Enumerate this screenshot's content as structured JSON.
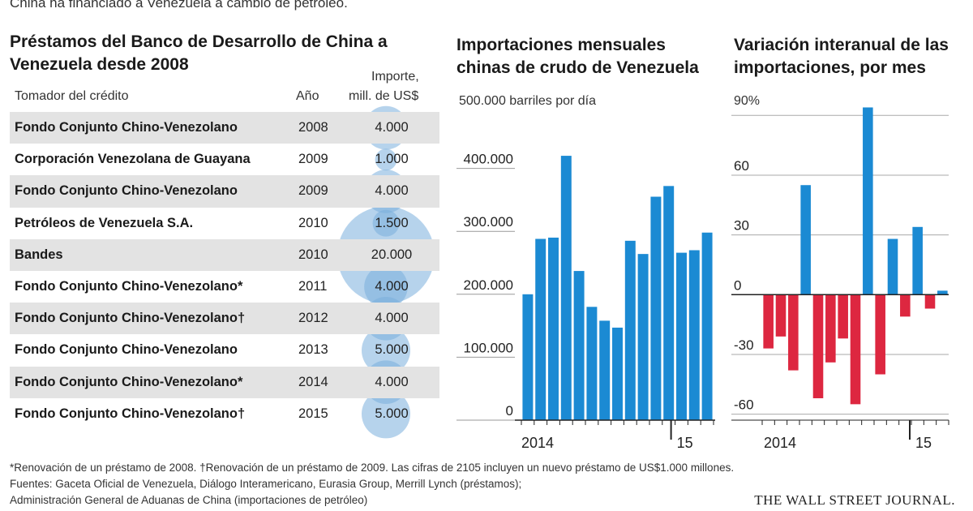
{
  "intro": "China ha financiado a Venezuela a cambio de petróleo.",
  "table": {
    "title_line1": "Préstamos del Banco de Desarrollo de China a",
    "title_line2": "Venezuela desde 2008",
    "col_borrower": "Tomador del crédito",
    "col_year": "Año",
    "col_amount_line1": "Importe,",
    "col_amount_line2": "mill. de US$",
    "rows": [
      {
        "borrower": "Fondo Conjunto Chino-Venezolano",
        "year": "2008",
        "amount": "4.000",
        "value": 4000
      },
      {
        "borrower": "Corporación Venezolana de Guayana",
        "year": "2009",
        "amount": "1.000",
        "value": 1000
      },
      {
        "borrower": "Fondo Conjunto Chino-Venezolano",
        "year": "2009",
        "amount": "4.000",
        "value": 4000
      },
      {
        "borrower": "Petróleos de Venezuela S.A.",
        "year": "2010",
        "amount": "1.500",
        "value": 1500
      },
      {
        "borrower": "Bandes",
        "year": "2010",
        "amount": "20.000",
        "value": 20000
      },
      {
        "borrower": "Fondo Conjunto Chino-Venezolano*",
        "year": "2011",
        "amount": "4.000",
        "value": 4000
      },
      {
        "borrower": "Fondo Conjunto Chino-Venezolano†",
        "year": "2012",
        "amount": "4.000",
        "value": 4000
      },
      {
        "borrower": "Fondo Conjunto Chino-Venezolano",
        "year": "2013",
        "amount": "5.000",
        "value": 5000
      },
      {
        "borrower": "Fondo Conjunto Chino-Venezolano*",
        "year": "2014",
        "amount": "4.000",
        "value": 4000
      },
      {
        "borrower": "Fondo Conjunto Chino-Venezolano†",
        "year": "2015",
        "amount": "5.000",
        "value": 5000
      }
    ]
  },
  "chart_data": [
    {
      "type": "bar",
      "title_line1": "Importaciones mensuales",
      "title_line2": "chinas de crudo de Venezuela",
      "ylabel": "500.000 barriles por día",
      "ylim": [
        0,
        500000
      ],
      "yticks": [
        0,
        100000,
        200000,
        300000,
        400000
      ],
      "ytick_labels": [
        "0",
        "100.000",
        "200.000",
        "300.000",
        "400.000"
      ],
      "xtick_labels": [
        "2014",
        "15"
      ],
      "values": [
        200000,
        288000,
        290000,
        420000,
        237000,
        180000,
        158000,
        147000,
        285000,
        264000,
        355000,
        372000,
        266000,
        270000,
        298000
      ],
      "color": "#1b8ad3"
    },
    {
      "type": "bar",
      "title_line1": "Variación interanual de las",
      "title_line2": "importaciones, por mes",
      "ylabel": "90%",
      "ylim": [
        -63,
        95
      ],
      "yticks": [
        -60,
        -30,
        0,
        30,
        60
      ],
      "ytick_labels": [
        "-60",
        "-30",
        "0",
        "30",
        "60"
      ],
      "xtick_labels": [
        "2014",
        "15"
      ],
      "values": [
        -27,
        -21,
        -38,
        55,
        -52,
        -34,
        -22,
        -55,
        94,
        -40,
        28,
        -11,
        34,
        -7,
        2
      ],
      "positive_color": "#1b8ad3",
      "negative_color": "#dd2740"
    }
  ],
  "footnotes": {
    "line1": "*Renovación de un préstamo de 2008. †Renovación de un préstamo de 2009. Las cifras de 2105 incluyen un nuevo préstamo de US$1.000 millones.",
    "line2": "Fuentes: Gaceta Oficial de Venezuela, Diálogo Interamericano, Eurasia Group, Merrill Lynch (préstamos);",
    "line3": "Administración General de Aduanas de China (importaciones de petróleo)"
  },
  "source_logo": "THE WALL STREET JOURNAL.",
  "colors": {
    "bubble": "#7aaedd",
    "row_shade": "#e3e3e3",
    "bar_blue": "#1b8ad3",
    "bar_red": "#dd2740"
  }
}
